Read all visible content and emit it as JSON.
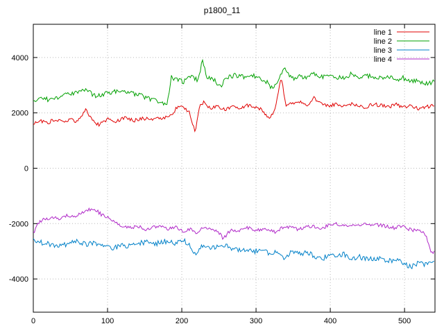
{
  "chart_data": {
    "type": "line",
    "title": "p1800_11",
    "xlabel": "",
    "ylabel": "",
    "xlim": [
      0,
      541
    ],
    "ylim": [
      -5200,
      5200
    ],
    "xticks": [
      0,
      100,
      200,
      300,
      400,
      500
    ],
    "yticks": [
      -4000,
      -2000,
      0,
      2000,
      4000
    ],
    "grid": true,
    "grid_style": "dotted",
    "grid_color": "#b8b8b8",
    "border_color": "#000000",
    "background": "#ffffff",
    "legend_position": "top-right",
    "series": [
      {
        "name": "line 1",
        "color": "#e00000",
        "noise": 65,
        "keypoints": [
          [
            0,
            1600
          ],
          [
            10,
            1720
          ],
          [
            20,
            1650
          ],
          [
            30,
            1780
          ],
          [
            40,
            1700
          ],
          [
            50,
            1760
          ],
          [
            60,
            1680
          ],
          [
            70,
            2120
          ],
          [
            78,
            1800
          ],
          [
            88,
            1560
          ],
          [
            100,
            1780
          ],
          [
            112,
            1700
          ],
          [
            124,
            1820
          ],
          [
            136,
            1730
          ],
          [
            148,
            1800
          ],
          [
            160,
            1760
          ],
          [
            172,
            1820
          ],
          [
            184,
            1880
          ],
          [
            192,
            2150
          ],
          [
            200,
            2230
          ],
          [
            210,
            2050
          ],
          [
            218,
            1280
          ],
          [
            224,
            2200
          ],
          [
            230,
            2430
          ],
          [
            238,
            2150
          ],
          [
            248,
            2230
          ],
          [
            258,
            2120
          ],
          [
            268,
            2230
          ],
          [
            278,
            2160
          ],
          [
            288,
            2280
          ],
          [
            298,
            2210
          ],
          [
            308,
            2120
          ],
          [
            318,
            1780
          ],
          [
            326,
            2180
          ],
          [
            334,
            3300
          ],
          [
            340,
            2280
          ],
          [
            350,
            2350
          ],
          [
            360,
            2420
          ],
          [
            370,
            2300
          ],
          [
            378,
            2550
          ],
          [
            388,
            2330
          ],
          [
            398,
            2260
          ],
          [
            408,
            2320
          ],
          [
            418,
            2220
          ],
          [
            428,
            2330
          ],
          [
            438,
            2260
          ],
          [
            448,
            2210
          ],
          [
            458,
            2320
          ],
          [
            468,
            2260
          ],
          [
            478,
            2210
          ],
          [
            488,
            2310
          ],
          [
            498,
            2210
          ],
          [
            508,
            2260
          ],
          [
            518,
            2160
          ],
          [
            528,
            2220
          ],
          [
            540,
            2260
          ]
        ]
      },
      {
        "name": "line 2",
        "color": "#00a000",
        "noise": 85,
        "keypoints": [
          [
            0,
            2380
          ],
          [
            12,
            2520
          ],
          [
            24,
            2470
          ],
          [
            36,
            2600
          ],
          [
            48,
            2680
          ],
          [
            60,
            2740
          ],
          [
            72,
            2820
          ],
          [
            84,
            2600
          ],
          [
            96,
            2700
          ],
          [
            108,
            2780
          ],
          [
            120,
            2820
          ],
          [
            132,
            2700
          ],
          [
            144,
            2640
          ],
          [
            156,
            2520
          ],
          [
            168,
            2420
          ],
          [
            180,
            2330
          ],
          [
            186,
            3280
          ],
          [
            194,
            3180
          ],
          [
            202,
            3120
          ],
          [
            212,
            3300
          ],
          [
            222,
            3180
          ],
          [
            228,
            3900
          ],
          [
            234,
            3280
          ],
          [
            244,
            3180
          ],
          [
            252,
            2950
          ],
          [
            262,
            3300
          ],
          [
            272,
            3360
          ],
          [
            282,
            3300
          ],
          [
            292,
            3360
          ],
          [
            302,
            3300
          ],
          [
            312,
            3180
          ],
          [
            322,
            2880
          ],
          [
            330,
            3120
          ],
          [
            338,
            3640
          ],
          [
            348,
            3220
          ],
          [
            358,
            3320
          ],
          [
            368,
            3260
          ],
          [
            378,
            3420
          ],
          [
            388,
            3300
          ],
          [
            398,
            3360
          ],
          [
            408,
            3300
          ],
          [
            418,
            3260
          ],
          [
            428,
            3400
          ],
          [
            438,
            3300
          ],
          [
            448,
            3360
          ],
          [
            458,
            3300
          ],
          [
            468,
            3260
          ],
          [
            478,
            3320
          ],
          [
            488,
            3200
          ],
          [
            498,
            3260
          ],
          [
            508,
            3120
          ],
          [
            518,
            3180
          ],
          [
            528,
            3060
          ],
          [
            540,
            3120
          ]
        ]
      },
      {
        "name": "line 3",
        "color": "#0080c8",
        "noise": 95,
        "keypoints": [
          [
            0,
            -2580
          ],
          [
            12,
            -2700
          ],
          [
            24,
            -2760
          ],
          [
            36,
            -2820
          ],
          [
            48,
            -2700
          ],
          [
            60,
            -2620
          ],
          [
            72,
            -2760
          ],
          [
            84,
            -2700
          ],
          [
            96,
            -2840
          ],
          [
            108,
            -2920
          ],
          [
            118,
            -2760
          ],
          [
            130,
            -2820
          ],
          [
            142,
            -2700
          ],
          [
            154,
            -2660
          ],
          [
            166,
            -2720
          ],
          [
            178,
            -2640
          ],
          [
            190,
            -2700
          ],
          [
            200,
            -2600
          ],
          [
            210,
            -2720
          ],
          [
            218,
            -3080
          ],
          [
            228,
            -2800
          ],
          [
            238,
            -2900
          ],
          [
            248,
            -2840
          ],
          [
            258,
            -2800
          ],
          [
            268,
            -2900
          ],
          [
            278,
            -2960
          ],
          [
            288,
            -2900
          ],
          [
            298,
            -3000
          ],
          [
            308,
            -2900
          ],
          [
            318,
            -3100
          ],
          [
            328,
            -2950
          ],
          [
            338,
            -3300
          ],
          [
            348,
            -3000
          ],
          [
            358,
            -3100
          ],
          [
            368,
            -3050
          ],
          [
            378,
            -3160
          ],
          [
            388,
            -3300
          ],
          [
            398,
            -3100
          ],
          [
            408,
            -3200
          ],
          [
            418,
            -3100
          ],
          [
            428,
            -3300
          ],
          [
            438,
            -3200
          ],
          [
            448,
            -3260
          ],
          [
            458,
            -3300
          ],
          [
            468,
            -3200
          ],
          [
            478,
            -3360
          ],
          [
            488,
            -3300
          ],
          [
            498,
            -3400
          ],
          [
            508,
            -3580
          ],
          [
            518,
            -3440
          ],
          [
            528,
            -3500
          ],
          [
            540,
            -3300
          ]
        ]
      },
      {
        "name": "line 4",
        "color": "#b028c8",
        "noise": 65,
        "keypoints": [
          [
            0,
            -2350
          ],
          [
            6,
            -2000
          ],
          [
            14,
            -1850
          ],
          [
            24,
            -1780
          ],
          [
            34,
            -1820
          ],
          [
            44,
            -1700
          ],
          [
            54,
            -1760
          ],
          [
            64,
            -1620
          ],
          [
            74,
            -1500
          ],
          [
            82,
            -1460
          ],
          [
            92,
            -1680
          ],
          [
            102,
            -1820
          ],
          [
            112,
            -2000
          ],
          [
            122,
            -2100
          ],
          [
            132,
            -2160
          ],
          [
            142,
            -2100
          ],
          [
            152,
            -2200
          ],
          [
            162,
            -2140
          ],
          [
            172,
            -2100
          ],
          [
            182,
            -2200
          ],
          [
            192,
            -2140
          ],
          [
            202,
            -2260
          ],
          [
            212,
            -2200
          ],
          [
            220,
            -2420
          ],
          [
            230,
            -2100
          ],
          [
            240,
            -2220
          ],
          [
            250,
            -2320
          ],
          [
            256,
            -2560
          ],
          [
            266,
            -2220
          ],
          [
            276,
            -2260
          ],
          [
            286,
            -2140
          ],
          [
            296,
            -2200
          ],
          [
            306,
            -2260
          ],
          [
            316,
            -2200
          ],
          [
            326,
            -2300
          ],
          [
            336,
            -2140
          ],
          [
            346,
            -2100
          ],
          [
            356,
            -2200
          ],
          [
            366,
            -2140
          ],
          [
            376,
            -2100
          ],
          [
            386,
            -2200
          ],
          [
            396,
            -2080
          ],
          [
            406,
            -2000
          ],
          [
            416,
            -2100
          ],
          [
            426,
            -2040
          ],
          [
            436,
            -2100
          ],
          [
            446,
            -1990
          ],
          [
            456,
            -2100
          ],
          [
            466,
            -2040
          ],
          [
            476,
            -2100
          ],
          [
            486,
            -2160
          ],
          [
            496,
            -2100
          ],
          [
            506,
            -2200
          ],
          [
            516,
            -2260
          ],
          [
            526,
            -2320
          ],
          [
            532,
            -2650
          ],
          [
            536,
            -3060
          ],
          [
            540,
            -3000
          ]
        ]
      }
    ]
  }
}
